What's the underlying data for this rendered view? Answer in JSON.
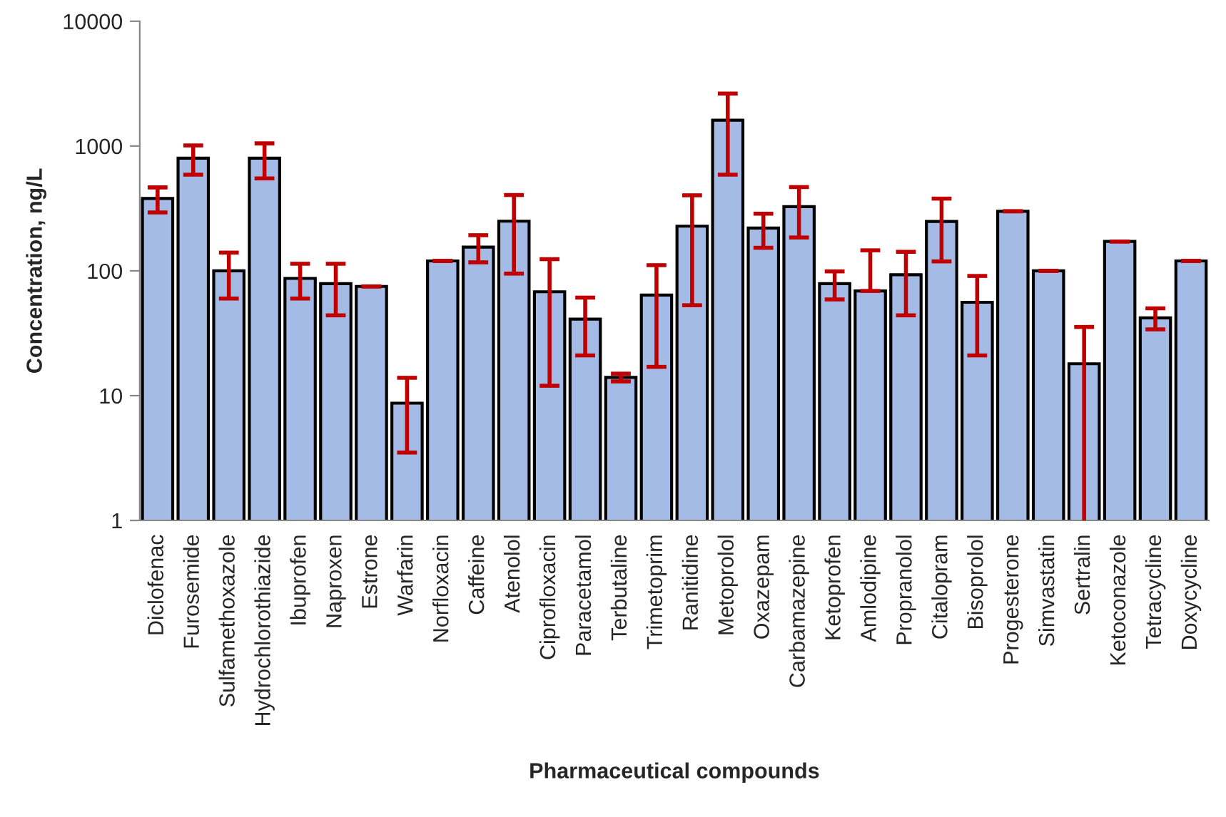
{
  "chart_data": {
    "type": "bar",
    "xlabel": "Pharmaceutical compounds",
    "ylabel": "Concentration, ng/L",
    "categories": [
      "Diclofenac",
      "Furosemide",
      "Sulfamethoxazole",
      "Hydrochlorothiazide",
      "Ibuprofen",
      "Naproxen",
      "Estrone",
      "Warfarin",
      "Norfloxacin",
      "Caffeine",
      "Atenolol",
      "Ciprofloxacin",
      "Paracetamol",
      "Terbutaline",
      "Trimetoprim",
      "Ranitidine",
      "Metoprolol",
      "Oxazepam",
      "Carbamazepine",
      "Ketoprofen",
      "Amlodipine",
      "Propranolol",
      "Citalopram",
      "Bisoprolol",
      "Progesterone",
      "Simvastatin",
      "Sertralin",
      "Ketoconazole",
      "Tetracycline",
      "Doxycycline"
    ],
    "series": [
      {
        "color": "#a4bbe5",
        "values": [
          380,
          800,
          100,
          800,
          87,
          79,
          75,
          8.7,
          120,
          155,
          250,
          68,
          41,
          14,
          64,
          228,
          1610,
          220,
          327,
          79,
          69,
          93,
          249,
          56,
          300,
          100,
          18,
          172,
          42,
          120
        ],
        "errors": [
          86,
          210,
          40,
          250,
          27,
          35,
          null,
          5.2,
          null,
          38,
          155,
          56,
          20,
          1,
          47,
          175,
          1020,
          67,
          142,
          20,
          [
            69,
            146
          ],
          49,
          130,
          35,
          null,
          null,
          17.5,
          null,
          8,
          null
        ]
      }
    ],
    "log": "y",
    "ylim": [
      1,
      10000
    ],
    "yticks": [
      1,
      10,
      100,
      1000,
      10000
    ],
    "grid": false,
    "legend": false
  }
}
